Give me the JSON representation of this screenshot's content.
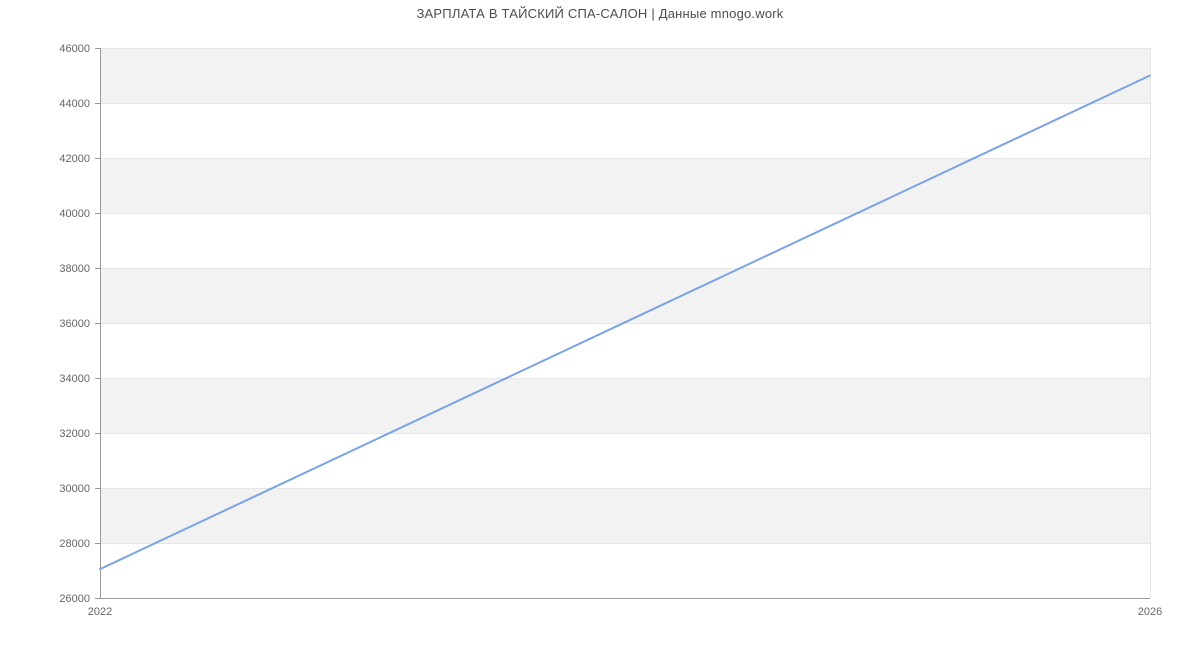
{
  "chart_data": {
    "type": "line",
    "title": "ЗАРПЛАТА В ТАЙСКИЙ СПА-САЛОН | Данные mnogo.work",
    "x": [
      "2022",
      "2026"
    ],
    "values": [
      27050,
      45000
    ],
    "xlabel": "",
    "ylabel": "",
    "ylim": [
      26000,
      46000
    ],
    "yticks": [
      26000,
      28000,
      30000,
      32000,
      34000,
      36000,
      38000,
      40000,
      42000,
      44000,
      46000
    ],
    "ytick_labels": [
      "26000",
      "28000",
      "30000",
      "32000",
      "34000",
      "36000",
      "38000",
      "40000",
      "42000",
      "44000",
      "46000"
    ],
    "xtick_labels": [
      "2022",
      "2026"
    ],
    "grid": true,
    "legend": false,
    "alternating_bands": true,
    "data_point_markers": false
  },
  "style": {
    "background": "#ffffff",
    "line_color": "#7aa2e5",
    "line_width": 2,
    "band_color": "#f2f2f2",
    "grid_color": "#e6e6e6",
    "axis_color": "#999999",
    "tick_label_color": "#666666",
    "title_color": "#4d4d4d"
  }
}
